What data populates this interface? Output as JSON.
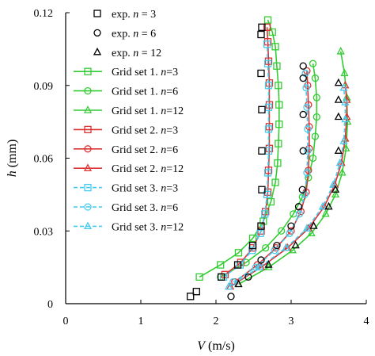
{
  "chart_data": {
    "type": "scatter",
    "title": "",
    "xlabel_main": "V",
    "xlabel_unit": " (m/s)",
    "ylabel_main": "h",
    "ylabel_unit": " (mm)",
    "xlim": [
      0,
      4
    ],
    "ylim": [
      0,
      0.12
    ],
    "xticks": [
      0,
      1,
      2,
      3,
      4
    ],
    "yticks": [
      0,
      0.03,
      0.06,
      0.09,
      0.12
    ],
    "xtick_labels": [
      "0",
      "1",
      "2",
      "3",
      "4"
    ],
    "ytick_labels": [
      "0",
      "0.03",
      "0.06",
      "0.09",
      "0.12"
    ],
    "grid": false,
    "legend_position": "top-left",
    "series": [
      {
        "name": "exp. n = 3",
        "name_pre": "exp. ",
        "name_n": "n",
        "name_post": " = 3",
        "color": "#000000",
        "marker": "square",
        "line": "none",
        "points": [
          [
            1.66,
            0.003
          ],
          [
            1.74,
            0.005
          ],
          [
            2.07,
            0.011
          ],
          [
            2.29,
            0.016
          ],
          [
            2.49,
            0.024
          ],
          [
            2.6,
            0.032
          ],
          [
            2.61,
            0.047
          ],
          [
            2.61,
            0.063
          ],
          [
            2.61,
            0.08
          ],
          [
            2.6,
            0.095
          ],
          [
            2.6,
            0.111
          ],
          [
            2.61,
            0.114
          ]
        ]
      },
      {
        "name": "exp. n = 6",
        "name_pre": "exp. ",
        "name_n": "n",
        "name_post": " = 6",
        "color": "#000000",
        "marker": "circle",
        "line": "none",
        "points": [
          [
            2.2,
            0.003
          ],
          [
            2.43,
            0.011
          ],
          [
            2.6,
            0.018
          ],
          [
            2.81,
            0.024
          ],
          [
            3.0,
            0.032
          ],
          [
            3.1,
            0.04
          ],
          [
            3.15,
            0.047
          ],
          [
            3.16,
            0.063
          ],
          [
            3.16,
            0.078
          ],
          [
            3.16,
            0.093
          ],
          [
            3.16,
            0.098
          ]
        ]
      },
      {
        "name": "exp. n = 12",
        "name_pre": "exp. ",
        "name_n": "n",
        "name_post": " = 12",
        "color": "#000000",
        "marker": "triangle",
        "line": "none",
        "points": [
          [
            2.3,
            0.008
          ],
          [
            2.7,
            0.016
          ],
          [
            3.06,
            0.024
          ],
          [
            3.3,
            0.032
          ],
          [
            3.5,
            0.04
          ],
          [
            3.59,
            0.047
          ],
          [
            3.63,
            0.063
          ],
          [
            3.63,
            0.077
          ],
          [
            3.63,
            0.084
          ],
          [
            3.63,
            0.091
          ]
        ]
      },
      {
        "name": "Grid set 1. n=3",
        "name_pre": "Grid set 1. ",
        "name_n": "n",
        "name_post": "=3",
        "color": "#33cc33",
        "marker": "square",
        "line": "solid",
        "points": [
          [
            1.78,
            0.011
          ],
          [
            2.06,
            0.016
          ],
          [
            2.3,
            0.021
          ],
          [
            2.49,
            0.027
          ],
          [
            2.63,
            0.034
          ],
          [
            2.73,
            0.042
          ],
          [
            2.79,
            0.05
          ],
          [
            2.82,
            0.058
          ],
          [
            2.83,
            0.066
          ],
          [
            2.84,
            0.074
          ],
          [
            2.84,
            0.082
          ],
          [
            2.83,
            0.09
          ],
          [
            2.81,
            0.098
          ],
          [
            2.79,
            0.106
          ],
          [
            2.75,
            0.112
          ],
          [
            2.69,
            0.117
          ]
        ]
      },
      {
        "name": "Grid set 1. n=6",
        "name_pre": "Grid set 1. ",
        "name_n": "n",
        "name_post": "=6",
        "color": "#33cc33",
        "marker": "circle",
        "line": "solid",
        "points": [
          [
            2.06,
            0.011
          ],
          [
            2.4,
            0.017
          ],
          [
            2.66,
            0.023
          ],
          [
            2.87,
            0.03
          ],
          [
            3.03,
            0.037
          ],
          [
            3.15,
            0.044
          ],
          [
            3.23,
            0.052
          ],
          [
            3.29,
            0.06
          ],
          [
            3.32,
            0.069
          ],
          [
            3.34,
            0.077
          ],
          [
            3.34,
            0.085
          ],
          [
            3.32,
            0.093
          ],
          [
            3.29,
            0.099
          ]
        ]
      },
      {
        "name": "Grid set 1. n=12",
        "name_pre": "Grid set 1. ",
        "name_n": "n",
        "name_post": "=12",
        "color": "#33cc33",
        "marker": "triangle",
        "line": "solid",
        "points": [
          [
            2.3,
            0.008
          ],
          [
            2.7,
            0.015
          ],
          [
            3.02,
            0.022
          ],
          [
            3.27,
            0.029
          ],
          [
            3.46,
            0.037
          ],
          [
            3.59,
            0.045
          ],
          [
            3.68,
            0.054
          ],
          [
            3.73,
            0.064
          ],
          [
            3.75,
            0.075
          ],
          [
            3.74,
            0.085
          ],
          [
            3.71,
            0.095
          ],
          [
            3.66,
            0.104
          ]
        ]
      },
      {
        "name": "Grid set 2. n=3",
        "name_pre": "Grid set 2. ",
        "name_n": "n",
        "name_post": "=3",
        "color": "#dd3333",
        "marker": "square",
        "line": "solid",
        "points": [
          [
            2.12,
            0.012
          ],
          [
            2.33,
            0.017
          ],
          [
            2.49,
            0.023
          ],
          [
            2.6,
            0.03
          ],
          [
            2.66,
            0.038
          ],
          [
            2.69,
            0.046
          ],
          [
            2.7,
            0.055
          ],
          [
            2.71,
            0.064
          ],
          [
            2.71,
            0.073
          ],
          [
            2.71,
            0.082
          ],
          [
            2.71,
            0.091
          ],
          [
            2.7,
            0.1
          ],
          [
            2.69,
            0.108
          ],
          [
            2.68,
            0.114
          ]
        ]
      },
      {
        "name": "Grid set 2. n=6",
        "name_pre": "Grid set 2. ",
        "name_n": "n",
        "name_post": "=6",
        "color": "#dd3333",
        "marker": "circle",
        "line": "solid",
        "points": [
          [
            2.25,
            0.009
          ],
          [
            2.55,
            0.016
          ],
          [
            2.8,
            0.023
          ],
          [
            3.0,
            0.03
          ],
          [
            3.13,
            0.038
          ],
          [
            3.2,
            0.046
          ],
          [
            3.23,
            0.055
          ],
          [
            3.24,
            0.064
          ],
          [
            3.24,
            0.073
          ],
          [
            3.23,
            0.082
          ],
          [
            3.22,
            0.09
          ],
          [
            3.21,
            0.096
          ]
        ]
      },
      {
        "name": "Grid set 2. n=12",
        "name_pre": "Grid set 2. ",
        "name_n": "n",
        "name_post": "=12",
        "color": "#dd3333",
        "marker": "triangle",
        "line": "solid",
        "points": [
          [
            2.19,
            0.007
          ],
          [
            2.6,
            0.015
          ],
          [
            2.95,
            0.023
          ],
          [
            3.23,
            0.031
          ],
          [
            3.44,
            0.04
          ],
          [
            3.58,
            0.049
          ],
          [
            3.67,
            0.058
          ],
          [
            3.72,
            0.068
          ],
          [
            3.74,
            0.077
          ],
          [
            3.74,
            0.084
          ],
          [
            3.72,
            0.09
          ]
        ]
      },
      {
        "name": "Grid set 3. n=3",
        "name_pre": "Grid set 3. ",
        "name_n": "n",
        "name_post": "=3",
        "color": "#44ccee",
        "marker": "square",
        "line": "dashed",
        "points": [
          [
            2.1,
            0.011
          ],
          [
            2.32,
            0.016
          ],
          [
            2.48,
            0.022
          ],
          [
            2.59,
            0.029
          ],
          [
            2.65,
            0.037
          ],
          [
            2.68,
            0.045
          ],
          [
            2.69,
            0.054
          ],
          [
            2.7,
            0.063
          ],
          [
            2.7,
            0.072
          ],
          [
            2.7,
            0.081
          ],
          [
            2.7,
            0.09
          ],
          [
            2.69,
            0.099
          ],
          [
            2.68,
            0.107
          ]
        ]
      },
      {
        "name": "Grid set 3. n=6",
        "name_pre": "Grid set 3. ",
        "name_n": "n",
        "name_post": "=6",
        "color": "#44ccee",
        "marker": "circle",
        "line": "dashed",
        "points": [
          [
            2.23,
            0.009
          ],
          [
            2.53,
            0.015
          ],
          [
            2.78,
            0.022
          ],
          [
            2.98,
            0.029
          ],
          [
            3.11,
            0.037
          ],
          [
            3.18,
            0.045
          ],
          [
            3.21,
            0.054
          ],
          [
            3.22,
            0.063
          ],
          [
            3.22,
            0.072
          ],
          [
            3.21,
            0.081
          ],
          [
            3.2,
            0.089
          ],
          [
            3.19,
            0.095
          ]
        ]
      },
      {
        "name": "Grid set 3. n=12",
        "name_pre": "Grid set 3. ",
        "name_n": "n",
        "name_post": "=12",
        "color": "#44ccee",
        "marker": "triangle",
        "line": "dashed",
        "points": [
          [
            2.17,
            0.007
          ],
          [
            2.58,
            0.015
          ],
          [
            2.93,
            0.023
          ],
          [
            3.21,
            0.031
          ],
          [
            3.42,
            0.04
          ],
          [
            3.56,
            0.049
          ],
          [
            3.65,
            0.058
          ],
          [
            3.7,
            0.067
          ],
          [
            3.72,
            0.076
          ],
          [
            3.72,
            0.083
          ],
          [
            3.7,
            0.089
          ]
        ]
      }
    ]
  }
}
